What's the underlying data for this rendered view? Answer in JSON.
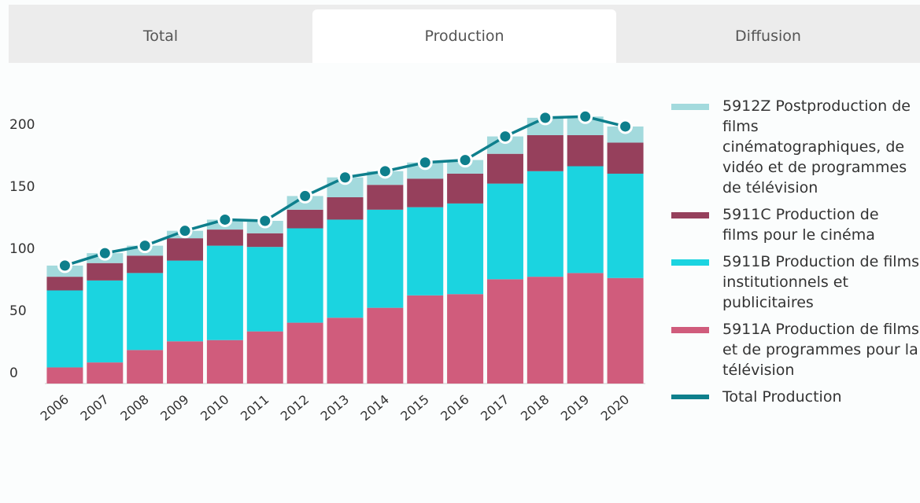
{
  "tabs": [
    "Total",
    "Production",
    "Diffusion"
  ],
  "active_tab": 1,
  "chart_data": {
    "type": "bar",
    "stacked": true,
    "categories": [
      "2006",
      "2007",
      "2008",
      "2009",
      "2010",
      "2011",
      "2012",
      "2013",
      "2014",
      "2015",
      "2016",
      "2017",
      "2018",
      "2019",
      "2020"
    ],
    "series": [
      {
        "name": "5911A Production de films et de programmes pour la télévision",
        "color": "#d05c7c",
        "values": [
          13,
          17,
          27,
          34,
          35,
          42,
          49,
          53,
          61,
          71,
          72,
          84,
          86,
          89,
          85
        ]
      },
      {
        "name": "5911B Production de films institutionnels et publicitaires",
        "color": "#1bd4e0",
        "values": [
          62,
          66,
          62,
          65,
          76,
          68,
          76,
          79,
          79,
          71,
          73,
          77,
          85,
          86,
          84
        ]
      },
      {
        "name": "5911C Production de films pour le cinéma",
        "color": "#96405c",
        "values": [
          11,
          14,
          14,
          18,
          13,
          11,
          15,
          18,
          20,
          23,
          24,
          24,
          29,
          25,
          25
        ]
      },
      {
        "name": "5912Z Postproduction de films cinématographiques, de vidéo et de programmes de télévision",
        "color": "#a3dadd",
        "values": [
          9,
          8,
          8,
          6,
          8,
          10,
          11,
          16,
          11,
          13,
          11,
          14,
          14,
          15,
          13
        ]
      },
      {
        "name": "Total Production",
        "type": "line",
        "color": "#0e7f8c",
        "values": [
          95,
          105,
          111,
          123,
          132,
          131,
          151,
          166,
          171,
          178,
          180,
          199,
          214,
          215,
          207
        ]
      }
    ],
    "ylim": [
      0,
      230
    ],
    "yticks": [
      0,
      50,
      100,
      150,
      200
    ],
    "grid": false
  }
}
